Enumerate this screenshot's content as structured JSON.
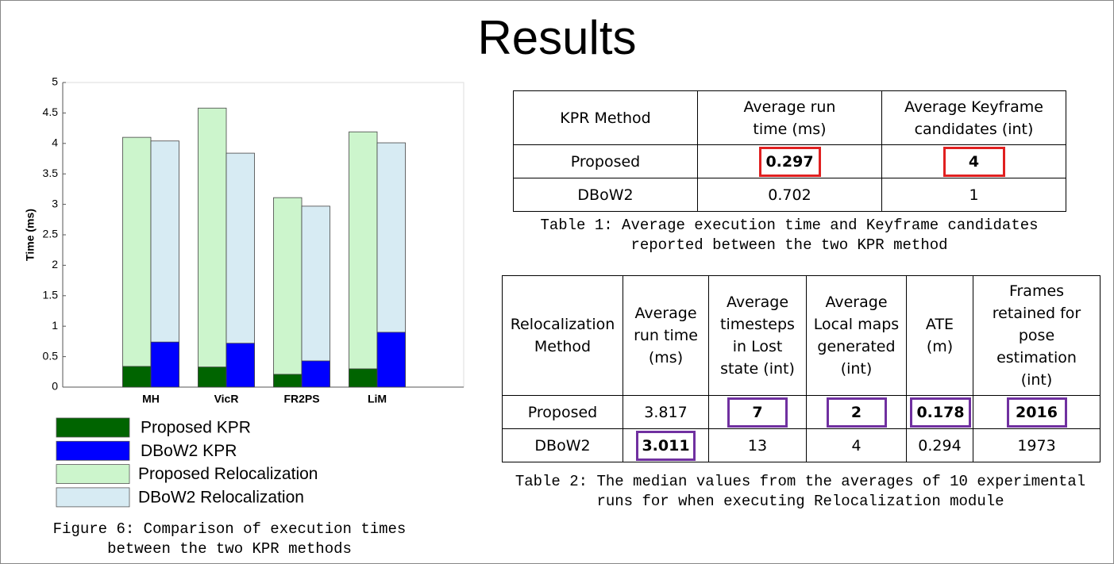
{
  "title": "Results",
  "chart_data": {
    "type": "bar",
    "overlay": true,
    "y_label": "Time (ms)",
    "categories": [
      "MH",
      "VicR",
      "FR2PS",
      "LiM"
    ],
    "series": [
      {
        "name": "Proposed KPR",
        "color": "#006400",
        "values": [
          0.34,
          0.33,
          0.21,
          0.3
        ]
      },
      {
        "name": "DBoW2 KPR",
        "color": "#0000ff",
        "values": [
          0.74,
          0.72,
          0.43,
          0.9
        ]
      },
      {
        "name": "Proposed Relocalization",
        "color": "#ccf5cc",
        "values": [
          4.1,
          4.58,
          3.11,
          4.19
        ]
      },
      {
        "name": "DBoW2 Relocalization",
        "color": "#d7ebf3",
        "values": [
          4.04,
          3.84,
          2.97,
          4.01
        ]
      }
    ],
    "ylim": [
      0,
      5
    ],
    "yticks": [
      0,
      0.5,
      1,
      1.5,
      2,
      2.5,
      3,
      3.5,
      4,
      4.5,
      5
    ],
    "grid": false,
    "caption": [
      "Figure 6: Comparison of execution times",
      "between the two KPR methods"
    ]
  },
  "table1": {
    "header": [
      "KPR Method",
      "Average run time (ms)",
      "Average Keyframe candidates (int)"
    ],
    "rows": [
      [
        "Proposed",
        "0.297",
        "4"
      ],
      [
        "DBoW2",
        "0.702",
        "1"
      ]
    ],
    "caption": [
      "Table 1:  Average execution time and Keyframe candidates",
      "reported between the two KPR method"
    ]
  },
  "table2": {
    "header": [
      "Relocalization Method",
      "Average run time (ms)",
      "Average timesteps in Lost state (int)",
      "Average Local maps generated (int)",
      "ATE (m)",
      "Frames retained for pose estimation (int)"
    ],
    "rows": [
      [
        "Proposed",
        "3.817",
        "7",
        "2",
        "0.178",
        "2016"
      ],
      [
        "DBoW2",
        "3.011",
        "13",
        "4",
        "0.294",
        "1973"
      ]
    ],
    "caption": [
      "Table 2:  The median values from the averages of 10 experimental",
      "runs for when executing Relocalization module"
    ]
  }
}
